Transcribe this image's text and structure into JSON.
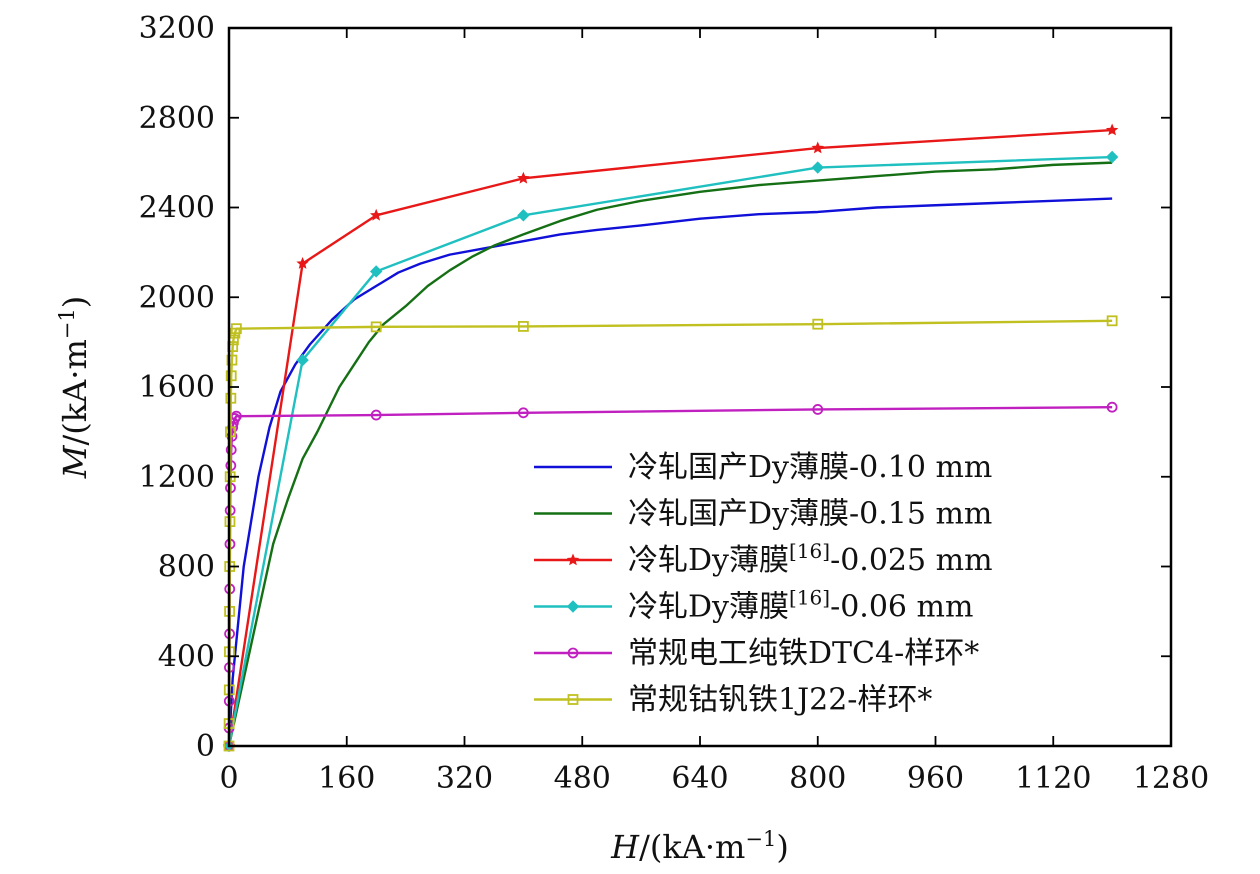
{
  "chart_data": {
    "type": "line",
    "title": "",
    "xlabel": {
      "var": "H",
      "text": "/(kA·m",
      "sup": "−1",
      "close": ")"
    },
    "ylabel": {
      "var": "M",
      "text": "/(kA·m",
      "sup": "−1",
      "close": ")"
    },
    "xlim": [
      0,
      1280
    ],
    "ylim": [
      0,
      3200
    ],
    "xticks": [
      0,
      160,
      320,
      480,
      640,
      800,
      960,
      1120,
      1280
    ],
    "yticks": [
      0,
      400,
      800,
      1200,
      1600,
      2000,
      2400,
      2800,
      3200
    ],
    "xtick_labels": [
      "0",
      "160",
      "320",
      "480",
      "640",
      "800",
      "960",
      "1120",
      "1280"
    ],
    "ytick_labels": [
      "0",
      "400",
      "800",
      "1200",
      "1600",
      "2000",
      "2400",
      "2800",
      "3200"
    ],
    "grid": false,
    "legend_position": "lower-right",
    "series": [
      {
        "name": "冷轧国产Dy薄膜-0.10 mm",
        "label_parts": [
          "冷轧国产Dy薄膜-0.10 mm"
        ],
        "color": "#1010d8",
        "marker": "none",
        "x": [
          0,
          5,
          20,
          40,
          55,
          70,
          90,
          110,
          140,
          170,
          200,
          230,
          260,
          300,
          350,
          400,
          450,
          500,
          560,
          640,
          720,
          800,
          880,
          960,
          1040,
          1120,
          1200
        ],
        "y": [
          0,
          300,
          800,
          1200,
          1420,
          1580,
          1700,
          1790,
          1900,
          1990,
          2050,
          2110,
          2150,
          2190,
          2220,
          2250,
          2280,
          2300,
          2320,
          2350,
          2370,
          2380,
          2400,
          2410,
          2420,
          2430,
          2440
        ]
      },
      {
        "name": "冷轧国产Dy薄膜-0.15 mm",
        "label_parts": [
          "冷轧国产Dy薄膜-0.15 mm"
        ],
        "color": "#157015",
        "marker": "none",
        "x": [
          0,
          20,
          40,
          60,
          80,
          100,
          120,
          150,
          170,
          190,
          210,
          240,
          270,
          300,
          330,
          360,
          400,
          450,
          500,
          560,
          640,
          720,
          800,
          880,
          960,
          1040,
          1120,
          1200
        ],
        "y": [
          0,
          300,
          600,
          900,
          1100,
          1280,
          1400,
          1600,
          1700,
          1800,
          1880,
          1960,
          2050,
          2120,
          2180,
          2230,
          2280,
          2340,
          2390,
          2430,
          2470,
          2500,
          2520,
          2540,
          2560,
          2570,
          2590,
          2600
        ]
      },
      {
        "name": "冷轧Dy薄膜[16]-0.025 mm",
        "label_parts": [
          "冷轧Dy薄膜",
          "[16]",
          "-0.025 mm"
        ],
        "color": "#e81818",
        "marker": "star",
        "x": [
          0,
          100,
          200,
          400,
          800,
          1200
        ],
        "y": [
          0,
          2150,
          2365,
          2530,
          2665,
          2745
        ]
      },
      {
        "name": "冷轧Dy薄膜[16]-0.06 mm",
        "label_parts": [
          "冷轧Dy薄膜",
          "[16]",
          "-0.06 mm"
        ],
        "color": "#20c0c0",
        "marker": "diamond",
        "x": [
          0,
          100,
          200,
          400,
          800,
          1200
        ],
        "y": [
          0,
          1720,
          2115,
          2365,
          2578,
          2625
        ]
      },
      {
        "name": "常规电工纯铁DTC4-样环*",
        "label_parts": [
          "常规电工纯铁DTC4-样环*"
        ],
        "color": "#c020c0",
        "marker": "circle",
        "x": [
          0,
          0.2,
          0.4,
          0.6,
          0.8,
          1.0,
          1.3,
          1.6,
          2.0,
          2.5,
          3.0,
          4.0,
          5.0,
          6.0,
          8.0,
          10,
          200,
          400,
          800,
          1200
        ],
        "y": [
          0,
          80,
          200,
          350,
          500,
          700,
          900,
          1050,
          1150,
          1250,
          1320,
          1380,
          1420,
          1440,
          1460,
          1470,
          1475,
          1485,
          1500,
          1510
        ]
      },
      {
        "name": "常规钴钒铁1J22-样环*",
        "label_parts": [
          "常规钴钒铁1J22-样环*"
        ],
        "color": "#c0c020",
        "marker": "square",
        "x": [
          0,
          0.2,
          0.4,
          0.6,
          0.8,
          1.0,
          1.3,
          1.6,
          2.0,
          2.5,
          3.0,
          4.0,
          5.0,
          6.0,
          8.0,
          10,
          200,
          400,
          800,
          1200
        ],
        "y": [
          0,
          100,
          250,
          420,
          600,
          800,
          1000,
          1200,
          1400,
          1550,
          1650,
          1720,
          1780,
          1810,
          1840,
          1860,
          1868,
          1870,
          1880,
          1895
        ]
      }
    ]
  }
}
